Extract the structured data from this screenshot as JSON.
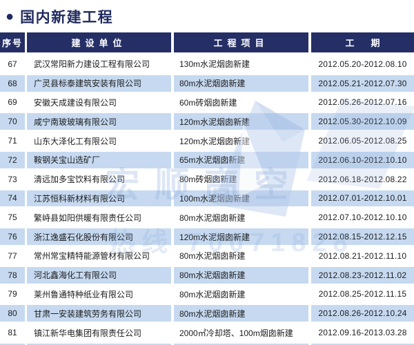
{
  "page_title": {
    "bullet": "●",
    "text": "国内新建工程"
  },
  "table": {
    "columns": [
      {
        "label": "序号"
      },
      {
        "label": "建设单位"
      },
      {
        "label": "工程项目"
      },
      {
        "label": "工期"
      }
    ],
    "rows": [
      {
        "no": "67",
        "company": "武汉常阳新力建设工程有限公司",
        "project": "130m水泥烟囱新建",
        "period": "2012.05.20-2012.08.10"
      },
      {
        "no": "68",
        "company": "广灵县标泰建筑安装有限公司",
        "project": "80m水泥烟囱新建",
        "period": "2012.05.21-2012.07.30"
      },
      {
        "no": "69",
        "company": "安徽天成建设有限公司",
        "project": "60m砖烟囱新建",
        "period": "2012.05.26-2012.07.16"
      },
      {
        "no": "70",
        "company": "咸宁南玻玻璃有限公司",
        "project": "120m水泥烟囱新建",
        "period": "2012.05.30-2012.10.09"
      },
      {
        "no": "71",
        "company": "山东大泽化工有限公司",
        "project": "120m水泥烟囱新建",
        "period": "2012.06.05-2012.08.25"
      },
      {
        "no": "72",
        "company": "鞍钢关宝山选矿厂",
        "project": "65m水泥烟囱新建",
        "period": "2012.06.10-2012.10.10"
      },
      {
        "no": "73",
        "company": "清远加多宝饮料有限公司",
        "project": "80m砖烟囱新建",
        "period": "2012.06.18-2012.08.22"
      },
      {
        "no": "74",
        "company": "江苏恒科新材料有限公司",
        "project": "100m水泥烟囱新建",
        "period": "2012.07.01-2012.10.01"
      },
      {
        "no": "75",
        "company": "繁峙县如阳供暖有限责任公司",
        "project": "80m水泥烟囱新建",
        "period": "2012.07.10-2012.10.10"
      },
      {
        "no": "76",
        "company": "浙江逸盛石化股份有限公司",
        "project": "120m水泥烟囱新建",
        "period": "2012.08.15-2012.12.15"
      },
      {
        "no": "77",
        "company": "常州常宝精特能源管材有限公司",
        "project": "80m水泥烟囱新建",
        "period": "2012.08.21-2012.11.10"
      },
      {
        "no": "78",
        "company": "河北鑫海化工有限公司",
        "project": "80m水泥烟囱新建",
        "period": "2012.08.23-2012.11.02"
      },
      {
        "no": "79",
        "company": "莱州鲁通特种纸业有限公司",
        "project": "80m水泥烟囱新建",
        "period": "2012.08.25-2012.11.15"
      },
      {
        "no": "80",
        "company": "甘肃一安装建筑劳务有限公司",
        "project": "80m水泥烟囱新建",
        "period": "2012.08.26-2012.10.24"
      },
      {
        "no": "81",
        "company": "镇江新华电集团有限责任公司",
        "project": "2000㎡冷却塔、100m烟囱新建",
        "period": "2012.09.16-2013.03.28"
      }
    ]
  },
  "watermark": {
    "brand_text": "宏顺高空",
    "hotline_text": "热线 70071828"
  },
  "colors": {
    "header_bg": "#252f66",
    "title": "#1f2a5e",
    "row_shaded": "#c6d9f0",
    "watermark": "#89a8d8"
  }
}
